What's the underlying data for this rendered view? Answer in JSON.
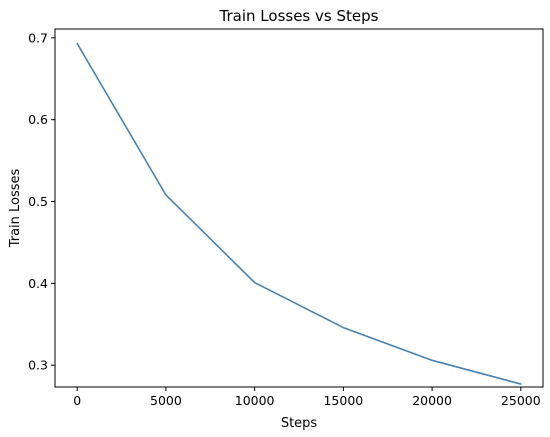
{
  "chart_data": {
    "type": "line",
    "title": "Train Losses vs Steps",
    "xlabel": "Steps",
    "ylabel": "Train Losses",
    "xlim": [
      -1250,
      26250
    ],
    "ylim": [
      0.2734,
      0.7108
    ],
    "xticks": [
      0,
      5000,
      10000,
      15000,
      20000,
      25000
    ],
    "xtick_labels": [
      "0",
      "5000",
      "10000",
      "15000",
      "20000",
      "25000"
    ],
    "yticks": [
      0.3,
      0.4,
      0.5,
      0.6,
      0.7
    ],
    "ytick_labels": [
      "0.3",
      "0.4",
      "0.5",
      "0.6",
      "0.7"
    ],
    "grid": false,
    "legend": null,
    "series": [
      {
        "color": "#4682b4",
        "x": [
          0,
          5000,
          10000,
          15000,
          20000,
          25000
        ],
        "y": [
          0.693,
          0.508,
          0.401,
          0.346,
          0.306,
          0.277
        ]
      }
    ]
  }
}
